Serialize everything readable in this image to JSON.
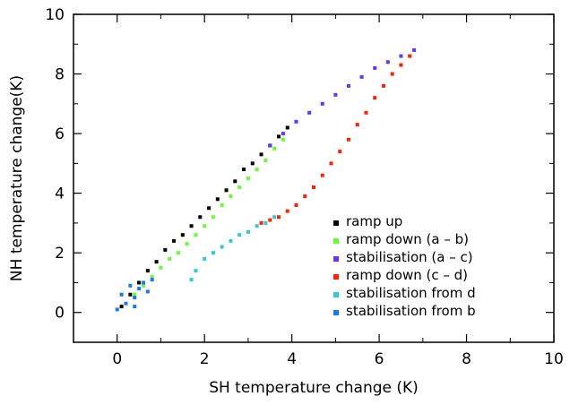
{
  "chart_data": {
    "type": "scatter",
    "title": "",
    "xlabel": "SH temperature change (K)",
    "ylabel": "NH temperature change(K)",
    "xlim": [
      -1,
      10
    ],
    "ylim": [
      -1,
      10
    ],
    "x_ticks": [
      0,
      2,
      4,
      6,
      8,
      10
    ],
    "y_ticks": [
      0,
      2,
      4,
      6,
      8,
      10
    ],
    "grid": false,
    "legend_position": "lower-right",
    "series": [
      {
        "name": "ramp up",
        "color": "#000000",
        "points": [
          [
            0.1,
            0.2
          ],
          [
            0.3,
            0.6
          ],
          [
            0.5,
            1.0
          ],
          [
            0.7,
            1.4
          ],
          [
            0.9,
            1.7
          ],
          [
            1.1,
            2.1
          ],
          [
            1.3,
            2.4
          ],
          [
            1.5,
            2.6
          ],
          [
            1.7,
            2.9
          ],
          [
            1.9,
            3.2
          ],
          [
            2.1,
            3.5
          ],
          [
            2.3,
            3.8
          ],
          [
            2.5,
            4.1
          ],
          [
            2.7,
            4.4
          ],
          [
            2.9,
            4.8
          ],
          [
            3.1,
            5.0
          ],
          [
            3.3,
            5.3
          ],
          [
            3.5,
            5.6
          ],
          [
            3.7,
            5.9
          ],
          [
            3.9,
            6.2
          ]
        ]
      },
      {
        "name": "ramp down (a – b)",
        "color": "#66ff33",
        "points": [
          [
            3.8,
            5.8
          ],
          [
            3.6,
            5.5
          ],
          [
            3.4,
            5.1
          ],
          [
            3.2,
            4.8
          ],
          [
            3.0,
            4.5
          ],
          [
            2.8,
            4.2
          ],
          [
            2.6,
            3.9
          ],
          [
            2.4,
            3.6
          ],
          [
            2.2,
            3.2
          ],
          [
            2.0,
            2.9
          ],
          [
            1.8,
            2.6
          ],
          [
            1.6,
            2.3
          ],
          [
            1.4,
            2.0
          ],
          [
            1.2,
            1.8
          ],
          [
            1.0,
            1.5
          ],
          [
            0.8,
            1.2
          ],
          [
            0.6,
            0.9
          ],
          [
            0.4,
            0.6
          ]
        ]
      },
      {
        "name": "stabilisation (a – c)",
        "color": "#6633ff",
        "points": [
          [
            3.5,
            5.6
          ],
          [
            3.8,
            6.0
          ],
          [
            4.1,
            6.4
          ],
          [
            4.4,
            6.7
          ],
          [
            4.7,
            7.0
          ],
          [
            5.0,
            7.3
          ],
          [
            5.3,
            7.6
          ],
          [
            5.6,
            7.9
          ],
          [
            5.9,
            8.2
          ],
          [
            6.2,
            8.4
          ],
          [
            6.5,
            8.6
          ],
          [
            6.8,
            8.8
          ]
        ]
      },
      {
        "name": "ramp down (c – d)",
        "color": "#ff2200",
        "points": [
          [
            6.7,
            8.6
          ],
          [
            6.5,
            8.3
          ],
          [
            6.3,
            8.0
          ],
          [
            6.1,
            7.6
          ],
          [
            5.9,
            7.2
          ],
          [
            5.7,
            6.7
          ],
          [
            5.5,
            6.3
          ],
          [
            5.3,
            5.8
          ],
          [
            5.1,
            5.4
          ],
          [
            4.9,
            5.0
          ],
          [
            4.7,
            4.6
          ],
          [
            4.5,
            4.2
          ],
          [
            4.3,
            3.9
          ],
          [
            4.1,
            3.6
          ],
          [
            3.9,
            3.4
          ],
          [
            3.7,
            3.2
          ],
          [
            3.5,
            3.1
          ],
          [
            3.3,
            3.0
          ]
        ]
      },
      {
        "name": "stabilisation from d",
        "color": "#33cccc",
        "points": [
          [
            3.6,
            3.2
          ],
          [
            3.4,
            3.0
          ],
          [
            3.2,
            2.9
          ],
          [
            3.0,
            2.7
          ],
          [
            2.8,
            2.6
          ],
          [
            2.6,
            2.4
          ],
          [
            2.4,
            2.2
          ],
          [
            2.2,
            2.0
          ],
          [
            2.0,
            1.8
          ],
          [
            1.8,
            1.4
          ],
          [
            1.7,
            1.1
          ]
        ]
      },
      {
        "name": "stabilisation from b",
        "color": "#1a75ff",
        "points": [
          [
            0.0,
            0.1
          ],
          [
            0.2,
            0.3
          ],
          [
            0.4,
            0.5
          ],
          [
            0.5,
            0.8
          ],
          [
            0.6,
            1.0
          ],
          [
            0.3,
            0.9
          ],
          [
            0.1,
            0.6
          ],
          [
            0.4,
            0.2
          ],
          [
            0.7,
            0.7
          ],
          [
            0.8,
            1.1
          ]
        ]
      }
    ]
  }
}
